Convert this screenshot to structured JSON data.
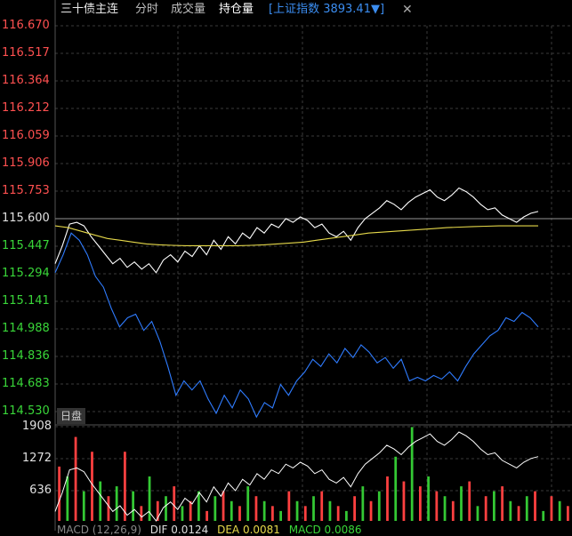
{
  "toolbar": {
    "title": "三十债主连",
    "tabs": [
      "分时",
      "成交量",
      "持仓量"
    ],
    "active_tab": "持仓量",
    "index_label": "[上证指数 3893.41▼]",
    "close_glyph": "✕"
  },
  "price_axis": [
    "116.670",
    "116.517",
    "116.364",
    "116.212",
    "116.059",
    "115.906",
    "115.753",
    "115.600",
    "115.447",
    "115.294",
    "115.141",
    "114.988",
    "114.836",
    "114.683",
    "114.530"
  ],
  "volume_axis": [
    "1908",
    "1272",
    "636"
  ],
  "panel_tag": "日盘",
  "bottom_indicator": {
    "name": "MACD (12,26,9)",
    "dif": "DIF 0.0124",
    "dea": "DEA 0.0081",
    "macd": "MACD 0.0086"
  },
  "colors": {
    "price_line": "#ffffff",
    "avg_line": "#e6d94a",
    "oi_line": "#2f7cff",
    "up": "#ff4040",
    "down": "#34c834",
    "grid": "#3a3a3a"
  },
  "chart_data": {
    "type": "line",
    "prev_close": 115.6,
    "ylim": [
      114.53,
      116.67
    ],
    "series": [
      {
        "values": [
          115.35,
          115.45,
          115.57,
          115.58,
          115.56,
          115.5,
          115.45,
          115.4,
          115.35,
          115.38,
          115.33,
          115.36,
          115.32,
          115.35,
          115.3,
          115.37,
          115.4,
          115.36,
          115.42,
          115.39,
          115.45,
          115.4,
          115.48,
          115.43,
          115.5,
          115.46,
          115.52,
          115.49,
          115.55,
          115.52,
          115.57,
          115.55,
          115.6,
          115.58,
          115.61,
          115.59,
          115.55,
          115.57,
          115.52,
          115.5,
          115.53,
          115.48,
          115.55,
          115.6,
          115.63,
          115.66,
          115.7,
          115.68,
          115.65,
          115.69,
          115.72,
          115.74,
          115.76,
          115.72,
          115.7,
          115.73,
          115.77,
          115.75,
          115.72,
          115.68,
          115.65,
          115.66,
          115.62,
          115.6,
          115.58,
          115.61,
          115.63,
          115.64
        ]
      },
      {
        "values": [
          115.56,
          115.55,
          115.53,
          115.51,
          115.49,
          115.48,
          115.47,
          115.46,
          115.455,
          115.452,
          115.45,
          115.45,
          115.45,
          115.45,
          115.45,
          115.452,
          115.455,
          115.46,
          115.465,
          115.47,
          115.48,
          115.49,
          115.5,
          115.51,
          115.52,
          115.525,
          115.53,
          115.535,
          115.54,
          115.545,
          115.55,
          115.553,
          115.556,
          115.558,
          115.56,
          115.56,
          115.56,
          115.56
        ]
      },
      {
        "values": [
          115.3,
          115.4,
          115.52,
          115.48,
          115.4,
          115.28,
          115.22,
          115.1,
          115.0,
          115.05,
          115.07,
          114.98,
          115.03,
          114.92,
          114.78,
          114.62,
          114.7,
          114.65,
          114.7,
          114.6,
          114.52,
          114.62,
          114.55,
          114.65,
          114.6,
          114.5,
          114.58,
          114.55,
          114.68,
          114.62,
          114.7,
          114.75,
          114.82,
          114.78,
          114.85,
          114.8,
          114.88,
          114.83,
          114.9,
          114.86,
          114.8,
          114.83,
          114.77,
          114.82,
          114.7,
          114.72,
          114.7,
          114.73,
          114.71,
          114.75,
          114.7,
          114.78,
          114.85,
          114.9,
          114.95,
          114.98,
          115.05,
          115.03,
          115.08,
          115.05,
          115.0
        ]
      }
    ],
    "volume_series": {
      "ylim": [
        0,
        1908
      ],
      "values": [
        1100,
        900,
        1700,
        600,
        1400,
        800,
        500,
        700,
        1400,
        600,
        300,
        900,
        400,
        500,
        700,
        300,
        400,
        600,
        200,
        500,
        600,
        400,
        300,
        700,
        500,
        400,
        300,
        200,
        600,
        400,
        300,
        500,
        600,
        400,
        300,
        200,
        500,
        700,
        400,
        600,
        900,
        1300,
        800,
        1900,
        700,
        900,
        600,
        500,
        400,
        700,
        800,
        300,
        500,
        600,
        700,
        400,
        300,
        500,
        600,
        200,
        500,
        400,
        300
      ]
    }
  }
}
